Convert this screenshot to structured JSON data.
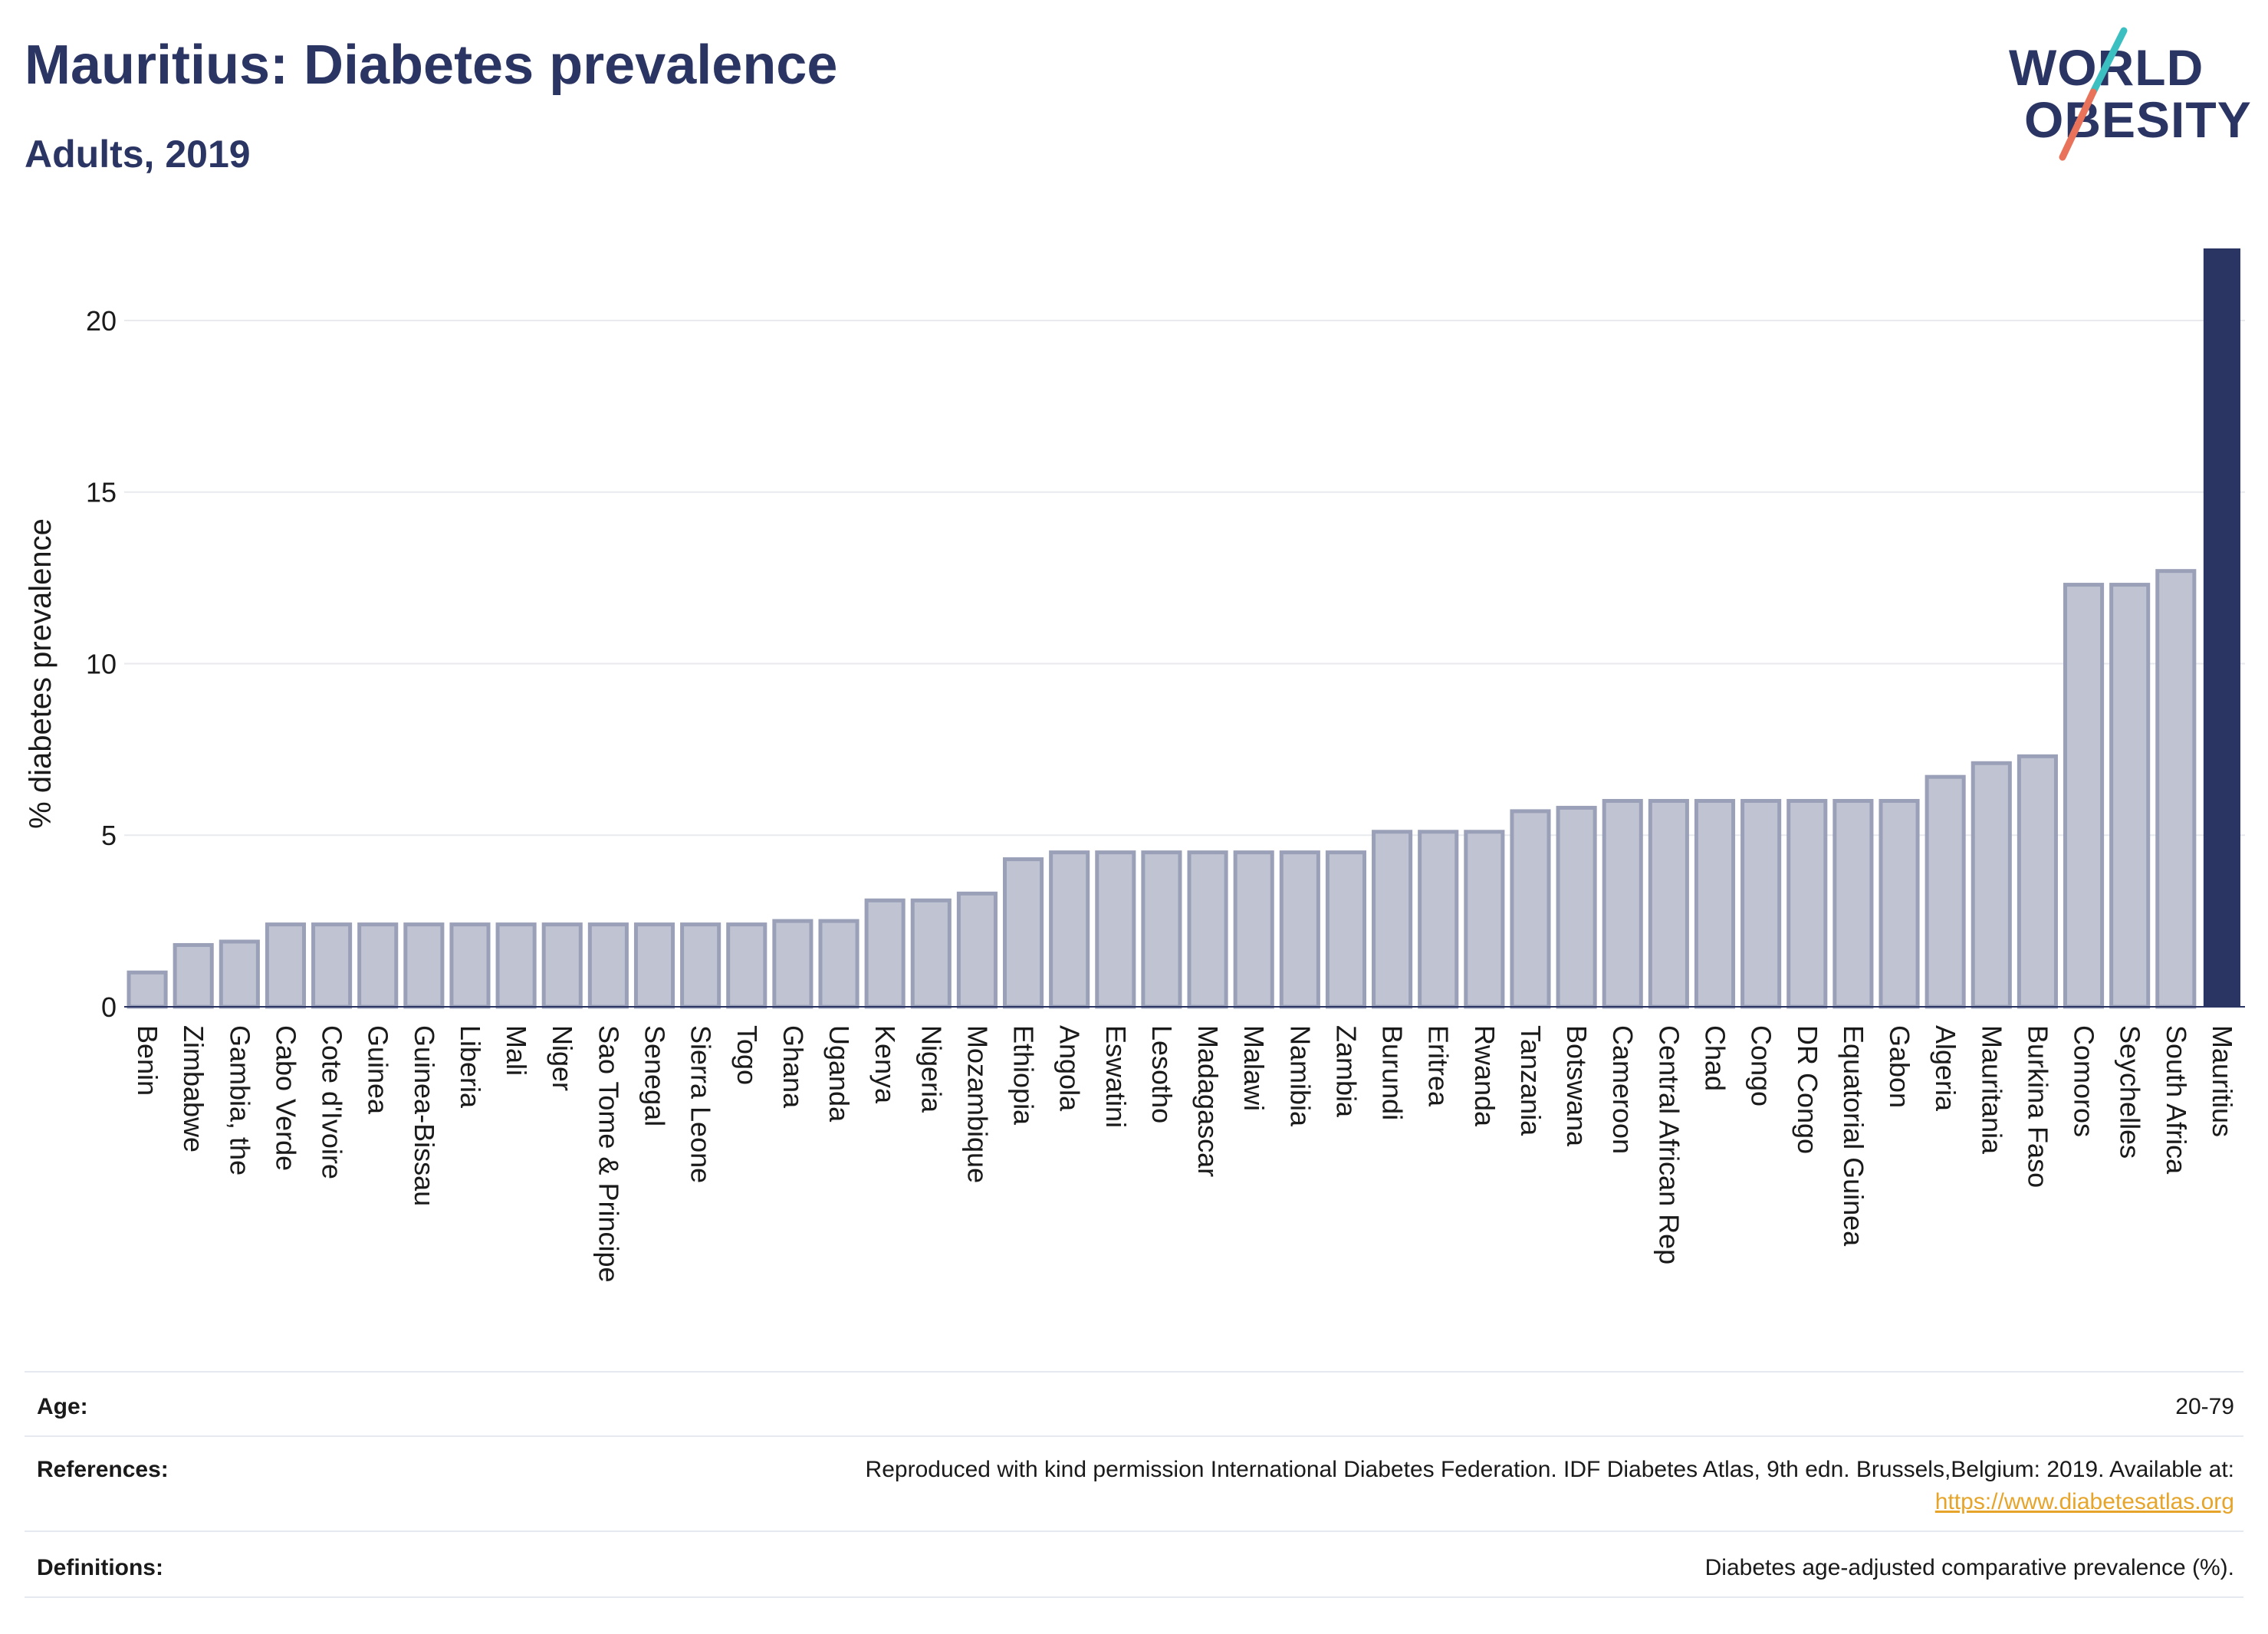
{
  "header": {
    "title": "Mauritius: Diabetes prevalence",
    "subtitle": "Adults, 2019"
  },
  "logo": {
    "line1": "WORLD",
    "line2": "OBESITY",
    "accent_teal": "#3bbfc0",
    "accent_coral": "#e8735a"
  },
  "colors": {
    "text": "#2b3563",
    "bar_fill": "#c0c3d1",
    "bar_stroke": "#9aa0b8",
    "highlight": "#2b3563",
    "grid": "#e8eaee"
  },
  "chart_data": {
    "type": "bar",
    "ylabel": "% diabetes prevalence",
    "ylim": [
      0,
      22.1
    ],
    "yticks": [
      0,
      5,
      10,
      15,
      20
    ],
    "grid": true,
    "highlight_category": "Mauritius",
    "categories": [
      "Benin",
      "Zimbabwe",
      "Gambia, the",
      "Cabo Verde",
      "Cote d'Ivoire",
      "Guinea",
      "Guinea-Bissau",
      "Liberia",
      "Mali",
      "Niger",
      "Sao Tome & Principe",
      "Senegal",
      "Sierra Leone",
      "Togo",
      "Ghana",
      "Uganda",
      "Kenya",
      "Nigeria",
      "Mozambique",
      "Ethiopia",
      "Angola",
      "Eswatini",
      "Lesotho",
      "Madagascar",
      "Malawi",
      "Namibia",
      "Zambia",
      "Burundi",
      "Eritrea",
      "Rwanda",
      "Tanzania",
      "Botswana",
      "Cameroon",
      "Central African Rep",
      "Chad",
      "Congo",
      "DR Congo",
      "Equatorial Guinea",
      "Gabon",
      "Algeria",
      "Mauritania",
      "Burkina Faso",
      "Comoros",
      "Seychelles",
      "South Africa",
      "Mauritius"
    ],
    "values": [
      1.0,
      1.8,
      1.9,
      2.4,
      2.4,
      2.4,
      2.4,
      2.4,
      2.4,
      2.4,
      2.4,
      2.4,
      2.4,
      2.4,
      2.5,
      2.5,
      3.1,
      3.1,
      3.3,
      4.3,
      4.5,
      4.5,
      4.5,
      4.5,
      4.5,
      4.5,
      4.5,
      5.1,
      5.1,
      5.1,
      5.7,
      5.8,
      6.0,
      6.0,
      6.0,
      6.0,
      6.0,
      6.0,
      6.0,
      6.7,
      7.1,
      7.3,
      12.3,
      12.3,
      12.7,
      22.1
    ]
  },
  "meta": {
    "age_label": "Age:",
    "age_value": "20-79",
    "references_label": "References:",
    "references_text": "Reproduced with kind permission International Diabetes Federation. IDF Diabetes Atlas, 9th edn. Brussels,Belgium: 2019. Available at:",
    "references_link": "https://www.diabetesatlas.org",
    "definitions_label": "Definitions:",
    "definitions_value": "Diabetes age-adjusted comparative prevalence (%)."
  }
}
